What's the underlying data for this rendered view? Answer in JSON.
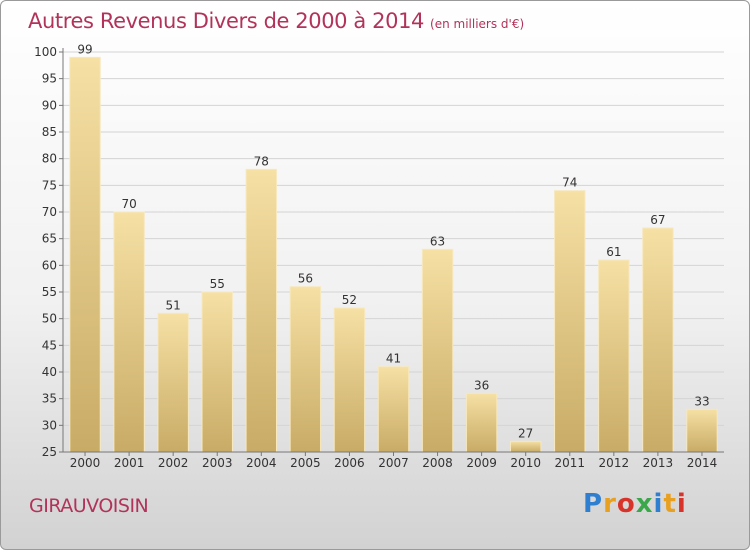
{
  "title": "Autres Revenus Divers de 2000 à 2014",
  "title_unit": "(en milliers d'€)",
  "location": "GIRAUVOISIN",
  "logo": {
    "letters": [
      {
        "ch": "P",
        "color": "#2f7fd0"
      },
      {
        "ch": "r",
        "color": "#e8a020"
      },
      {
        "ch": "o",
        "color": "#d8332a"
      },
      {
        "ch": "x",
        "color": "#3aa84a"
      },
      {
        "ch": "i",
        "color": "#2f7fd0"
      },
      {
        "ch": "t",
        "color": "#e8a020"
      },
      {
        "ch": "i",
        "color": "#d8332a"
      }
    ]
  },
  "chart_data": {
    "type": "bar",
    "title": "Autres Revenus Divers de 2000 à 2014",
    "xlabel": "",
    "ylabel": "",
    "ylim": [
      25,
      100
    ],
    "yticks": [
      25,
      30,
      35,
      40,
      45,
      50,
      55,
      60,
      65,
      70,
      75,
      80,
      85,
      90,
      95,
      100
    ],
    "categories": [
      "2000",
      "2001",
      "2002",
      "2003",
      "2004",
      "2005",
      "2006",
      "2007",
      "2008",
      "2009",
      "2010",
      "2011",
      "2012",
      "2013",
      "2014"
    ],
    "values": [
      99,
      70,
      51,
      55,
      78,
      56,
      52,
      41,
      63,
      36,
      27,
      74,
      61,
      67,
      33
    ],
    "grid": true,
    "bar_color": "#e8cf8a"
  }
}
